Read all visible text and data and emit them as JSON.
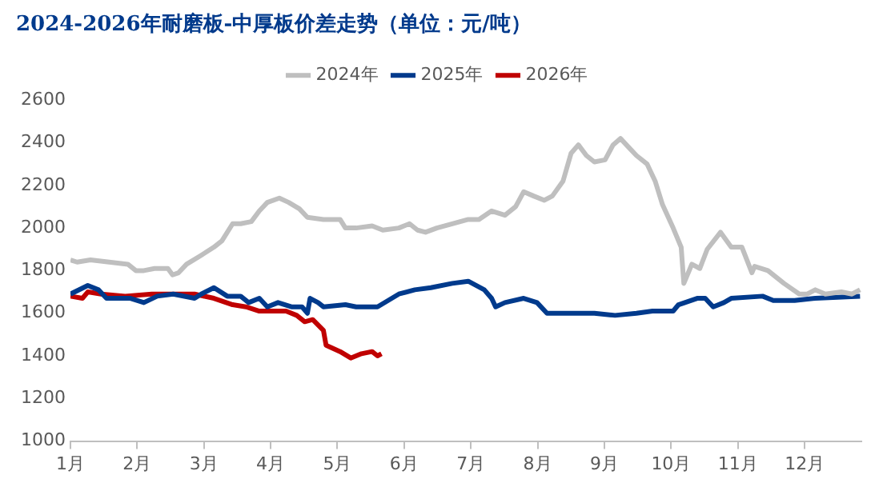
{
  "chart_data": {
    "type": "line",
    "title": "2024-2026年耐磨板-中厚板价差走势（单位：元/吨）",
    "xlim": [
      1,
      12.85
    ],
    "xticks": [
      {
        "value": 1,
        "label": "1月"
      },
      {
        "value": 2,
        "label": "2月"
      },
      {
        "value": 3,
        "label": "3月"
      },
      {
        "value": 4,
        "label": "4月"
      },
      {
        "value": 5,
        "label": "5月"
      },
      {
        "value": 6,
        "label": "6月"
      },
      {
        "value": 7,
        "label": "7月"
      },
      {
        "value": 8,
        "label": "8月"
      },
      {
        "value": 9,
        "label": "9月"
      },
      {
        "value": 10,
        "label": "10月"
      },
      {
        "value": 11,
        "label": "11月"
      },
      {
        "value": 12,
        "label": "12月"
      }
    ],
    "ylim": [
      1000,
      2600
    ],
    "yticks": [
      1000,
      1200,
      1400,
      1600,
      1800,
      2000,
      2200,
      2400,
      2600
    ],
    "grid": false,
    "legend": "top",
    "marker": "none",
    "line_style": "solid",
    "series": [
      {
        "name": "2024年",
        "color": "#bfbfbf",
        "x": [
          1.0,
          1.1,
          1.3,
          1.58,
          1.86,
          1.98,
          2.1,
          2.26,
          2.46,
          2.53,
          2.62,
          2.74,
          2.95,
          3.15,
          3.27,
          3.43,
          3.55,
          3.71,
          3.83,
          3.95,
          4.13,
          4.27,
          4.43,
          4.55,
          4.79,
          5.04,
          5.12,
          5.28,
          5.52,
          5.68,
          5.92,
          6.08,
          6.2,
          6.32,
          6.49,
          6.72,
          6.96,
          7.12,
          7.31,
          7.51,
          7.67,
          7.79,
          7.94,
          8.1,
          8.22,
          8.38,
          8.5,
          8.61,
          8.73,
          8.85,
          9.01,
          9.13,
          9.24,
          9.36,
          9.48,
          9.64,
          9.76,
          9.87,
          10.03,
          10.15,
          10.19,
          10.31,
          10.43,
          10.54,
          10.74,
          10.9,
          11.06,
          11.21,
          11.25,
          11.45,
          11.69,
          11.92,
          12.04,
          12.16,
          12.31,
          12.55,
          12.71,
          12.83
        ],
        "values": [
          1850,
          1840,
          1850,
          1840,
          1830,
          1800,
          1800,
          1810,
          1810,
          1780,
          1790,
          1830,
          1870,
          1910,
          1940,
          2020,
          2020,
          2030,
          2080,
          2120,
          2140,
          2120,
          2090,
          2050,
          2040,
          2040,
          2000,
          2000,
          2010,
          1990,
          2000,
          2020,
          1990,
          1980,
          2000,
          2020,
          2040,
          2040,
          2080,
          2060,
          2100,
          2170,
          2150,
          2130,
          2150,
          2220,
          2350,
          2390,
          2340,
          2310,
          2320,
          2390,
          2420,
          2380,
          2340,
          2300,
          2220,
          2110,
          2000,
          1910,
          1740,
          1830,
          1810,
          1900,
          1980,
          1910,
          1910,
          1790,
          1820,
          1800,
          1740,
          1690,
          1690,
          1710,
          1690,
          1700,
          1690,
          1710
        ]
      },
      {
        "name": "2025年",
        "color": "#003a8c",
        "x": [
          1.0,
          1.26,
          1.42,
          1.54,
          1.9,
          2.1,
          2.3,
          2.54,
          2.86,
          2.96,
          3.15,
          3.35,
          3.55,
          3.67,
          3.83,
          3.95,
          4.11,
          4.31,
          4.47,
          4.55,
          4.59,
          4.71,
          4.79,
          5.12,
          5.28,
          5.6,
          5.92,
          6.16,
          6.4,
          6.72,
          6.96,
          7.2,
          7.31,
          7.37,
          7.51,
          7.79,
          7.99,
          8.14,
          8.45,
          8.85,
          9.16,
          9.48,
          9.72,
          10.03,
          10.11,
          10.39,
          10.51,
          10.63,
          10.79,
          10.9,
          11.37,
          11.53,
          11.85,
          12.16,
          12.83
        ],
        "values": [
          1690,
          1730,
          1710,
          1670,
          1670,
          1650,
          1680,
          1690,
          1670,
          1690,
          1720,
          1680,
          1680,
          1650,
          1670,
          1630,
          1650,
          1630,
          1630,
          1600,
          1670,
          1650,
          1630,
          1640,
          1630,
          1630,
          1690,
          1710,
          1720,
          1740,
          1750,
          1710,
          1670,
          1630,
          1650,
          1670,
          1650,
          1600,
          1600,
          1600,
          1590,
          1600,
          1610,
          1610,
          1640,
          1670,
          1670,
          1630,
          1650,
          1670,
          1680,
          1660,
          1660,
          1670,
          1680
        ]
      },
      {
        "name": "2026年",
        "color": "#c00000",
        "x": [
          1.0,
          1.18,
          1.26,
          1.46,
          1.82,
          2.22,
          2.54,
          2.86,
          3.15,
          3.43,
          3.63,
          3.83,
          4.23,
          4.39,
          4.51,
          4.63,
          4.79,
          4.83,
          5.04,
          5.2,
          5.36,
          5.52,
          5.6,
          5.66
        ],
        "values": [
          1680,
          1670,
          1700,
          1690,
          1680,
          1690,
          1690,
          1690,
          1670,
          1640,
          1630,
          1610,
          1610,
          1590,
          1560,
          1570,
          1520,
          1450,
          1420,
          1390,
          1410,
          1420,
          1400,
          1410
        ]
      }
    ]
  }
}
